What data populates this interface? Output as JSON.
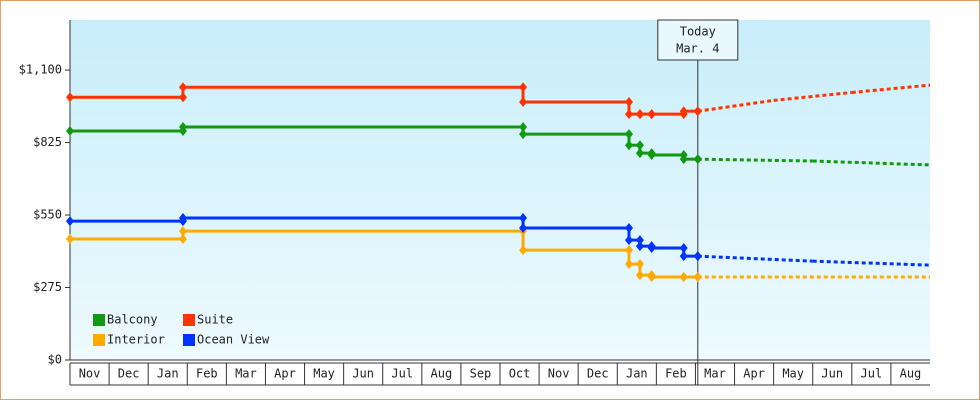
{
  "chart_data": {
    "type": "step-line",
    "xlim": [
      0,
      22
    ],
    "ylim": [
      0,
      1290
    ],
    "xticks": [
      "Nov",
      "Dec",
      "Jan",
      "Feb",
      "Mar",
      "Apr",
      "May",
      "Jun",
      "Jul",
      "Aug",
      "Sep",
      "Oct",
      "Nov",
      "Dec",
      "Jan",
      "Feb",
      "Mar",
      "Apr",
      "May",
      "Jun",
      "Jul",
      "Aug"
    ],
    "yticks": [
      {
        "value": 0,
        "label": "$0"
      },
      {
        "value": 275,
        "label": "$275"
      },
      {
        "value": 550,
        "label": "$550"
      },
      {
        "value": 825,
        "label": "$825"
      },
      {
        "value": 1100,
        "label": "$1,100"
      }
    ],
    "annotation": {
      "x": 16.06,
      "lines": [
        "Today",
        "Mar. 4"
      ]
    },
    "series": [
      {
        "name": "Balcony",
        "color": "#119911",
        "x": [
          0,
          2.89,
          11.59,
          14.3,
          14.58,
          14.88,
          15.7,
          16.06
        ],
        "values": [
          869,
          884,
          857,
          815,
          785,
          778,
          762,
          762
        ],
        "forecast": {
          "x": [
            16.06,
            19,
            22
          ],
          "values": [
            762,
            755,
            740
          ]
        }
      },
      {
        "name": "Suite",
        "color": "#ff3300",
        "x": [
          0,
          2.89,
          11.59,
          14.3,
          14.58,
          14.88,
          15.7,
          16.06
        ],
        "values": [
          997,
          1035,
          979,
          933,
          933,
          933,
          944,
          944
        ],
        "forecast": {
          "x": [
            16.06,
            18,
            20,
            22
          ],
          "values": [
            944,
            985,
            1015,
            1043
          ]
        }
      },
      {
        "name": "Interior",
        "color": "#ffaa00",
        "x": [
          0,
          2.89,
          11.59,
          14.3,
          14.58,
          14.88,
          15.7,
          16.06
        ],
        "values": [
          459,
          489,
          417,
          364,
          322,
          315,
          315,
          315
        ],
        "forecast": {
          "x": [
            16.06,
            22
          ],
          "values": [
            315,
            315
          ]
        }
      },
      {
        "name": "Ocean View",
        "color": "#0033ff",
        "x": [
          0,
          2.89,
          11.59,
          14.3,
          14.58,
          14.88,
          15.7,
          16.06
        ],
        "values": [
          527,
          539,
          501,
          455,
          432,
          425,
          394,
          394
        ],
        "forecast": {
          "x": [
            16.06,
            19,
            22
          ],
          "values": [
            394,
            375,
            360
          ]
        }
      }
    ]
  }
}
